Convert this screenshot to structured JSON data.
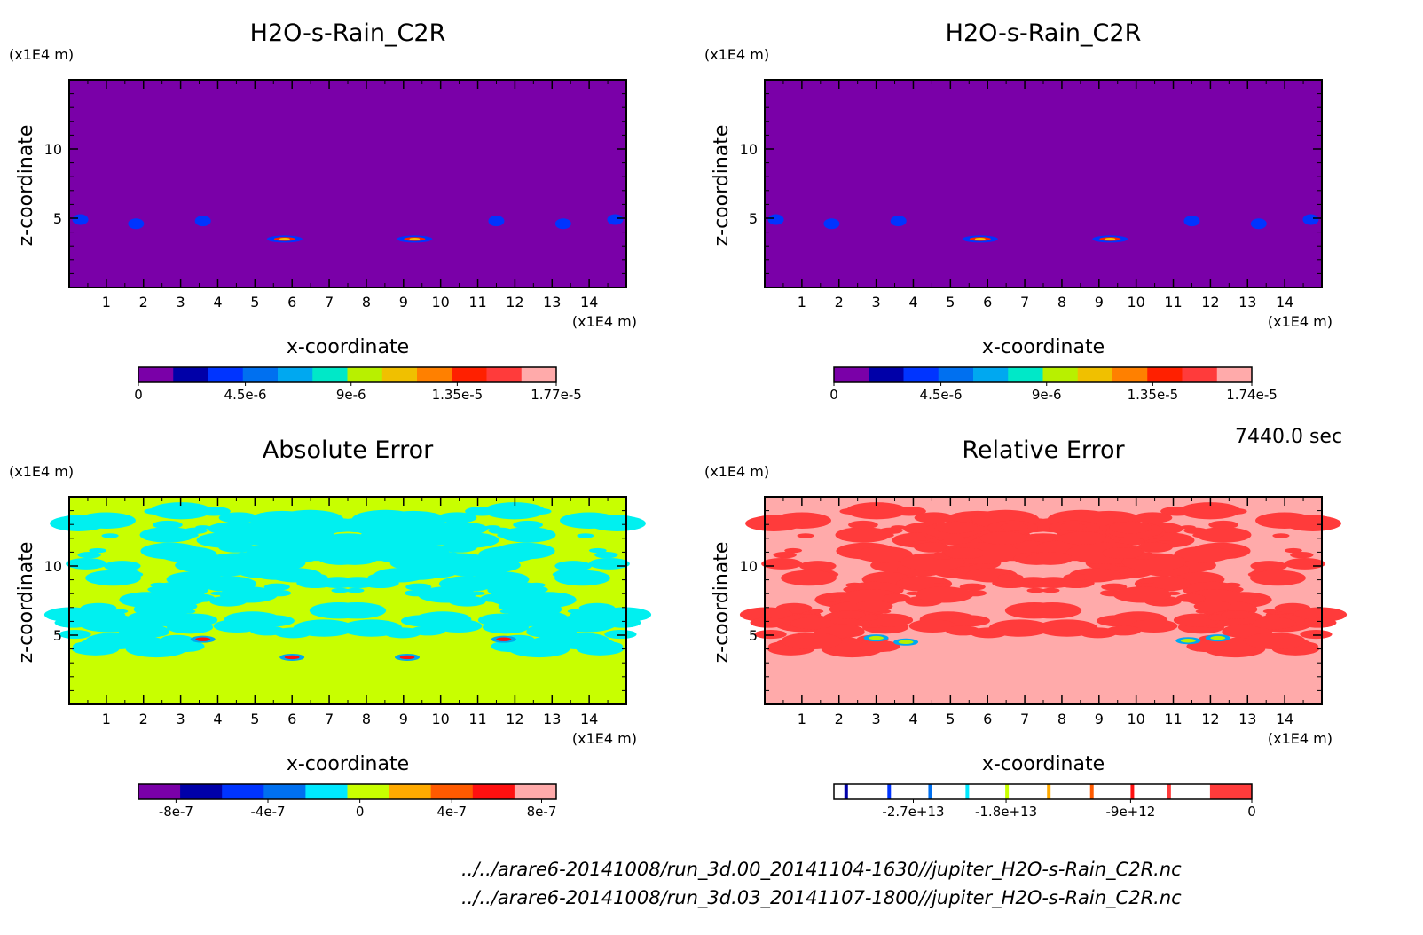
{
  "chart_data": [
    {
      "type": "heatmap",
      "title": "H2O-s-Rain_C2R",
      "xlabel": "x-coordinate",
      "ylabel": "z-coordinate",
      "x_unit": "(x1E4 m)",
      "y_unit": "(x1E4 m)",
      "xlim": [
        0,
        15
      ],
      "ylim": [
        0,
        15
      ],
      "x_ticks": [
        1,
        2,
        3,
        4,
        5,
        6,
        7,
        8,
        9,
        10,
        11,
        12,
        13,
        14
      ],
      "y_ticks": [
        5,
        10
      ],
      "background_level": 0,
      "colorbar": {
        "colors": [
          "#7a00a8",
          "#0000a8",
          "#0034ff",
          "#0070f0",
          "#00a8f0",
          "#00e8c8",
          "#b8f000",
          "#f0c000",
          "#ff8000",
          "#ff2000",
          "#ff3b3b",
          "#ffaaaa"
        ],
        "labels": [
          "0",
          "4.5e-6",
          "9e-6",
          "1.35e-5",
          "1.77e-5"
        ],
        "min": 0,
        "max": 1.77e-05
      },
      "features": [
        {
          "x": 0.3,
          "z": 4.9,
          "value": 5e-06,
          "color": "#0034ff"
        },
        {
          "x": 14.7,
          "z": 4.9,
          "value": 5e-06,
          "color": "#0034ff"
        },
        {
          "x": 1.8,
          "z": 4.6,
          "value": 2e-06,
          "color": "#0034ff"
        },
        {
          "x": 3.6,
          "z": 4.8,
          "value": 2e-06,
          "color": "#0034ff"
        },
        {
          "x": 11.5,
          "z": 4.8,
          "value": 2e-06,
          "color": "#0034ff"
        },
        {
          "x": 13.3,
          "z": 4.6,
          "value": 2e-06,
          "color": "#0034ff"
        },
        {
          "x": 5.8,
          "z": 3.5,
          "value": 1.77e-05,
          "color": "#ff2000"
        },
        {
          "x": 9.3,
          "z": 3.5,
          "value": 1.77e-05,
          "color": "#ff2000"
        }
      ]
    },
    {
      "type": "heatmap",
      "title": "H2O-s-Rain_C2R",
      "xlabel": "x-coordinate",
      "ylabel": "z-coordinate",
      "x_unit": "(x1E4 m)",
      "y_unit": "(x1E4 m)",
      "xlim": [
        0,
        15
      ],
      "ylim": [
        0,
        15
      ],
      "x_ticks": [
        1,
        2,
        3,
        4,
        5,
        6,
        7,
        8,
        9,
        10,
        11,
        12,
        13,
        14
      ],
      "y_ticks": [
        5,
        10
      ],
      "background_level": 0,
      "colorbar": {
        "colors": [
          "#7a00a8",
          "#0000a8",
          "#0034ff",
          "#0070f0",
          "#00a8f0",
          "#00e8c8",
          "#b8f000",
          "#f0c000",
          "#ff8000",
          "#ff2000",
          "#ff3b3b",
          "#ffaaaa"
        ],
        "labels": [
          "0",
          "4.5e-6",
          "9e-6",
          "1.35e-5",
          "1.74e-5"
        ],
        "min": 0,
        "max": 1.74e-05
      },
      "features": [
        {
          "x": 0.3,
          "z": 4.9,
          "value": 5e-06,
          "color": "#0034ff"
        },
        {
          "x": 14.7,
          "z": 4.9,
          "value": 5e-06,
          "color": "#0034ff"
        },
        {
          "x": 1.8,
          "z": 4.6,
          "value": 2e-06,
          "color": "#0034ff"
        },
        {
          "x": 3.6,
          "z": 4.8,
          "value": 2e-06,
          "color": "#0034ff"
        },
        {
          "x": 11.5,
          "z": 4.8,
          "value": 2e-06,
          "color": "#0034ff"
        },
        {
          "x": 13.3,
          "z": 4.6,
          "value": 2e-06,
          "color": "#0034ff"
        },
        {
          "x": 5.8,
          "z": 3.5,
          "value": 1.74e-05,
          "color": "#ff2000"
        },
        {
          "x": 9.3,
          "z": 3.5,
          "value": 1.74e-05,
          "color": "#ff2000"
        }
      ]
    },
    {
      "type": "heatmap",
      "title": "Absolute Error",
      "xlabel": "x-coordinate",
      "ylabel": "z-coordinate",
      "x_unit": "(x1E4 m)",
      "y_unit": "(x1E4 m)",
      "xlim": [
        0,
        15
      ],
      "ylim": [
        0,
        15
      ],
      "x_ticks": [
        1,
        2,
        3,
        4,
        5,
        6,
        7,
        8,
        9,
        10,
        11,
        12,
        13,
        14
      ],
      "y_ticks": [
        5,
        10
      ],
      "background_color": "#c8ff00",
      "pattern_color": "#00f0f0",
      "colorbar": {
        "colors": [
          "#7a00a8",
          "#0000a8",
          "#0034ff",
          "#0070f0",
          "#00e8ff",
          "#c8ff00",
          "#ffaa00",
          "#ff5a00",
          "#ff1010",
          "#ffaaaa"
        ],
        "labels": [
          "-8e-7",
          "-4e-7",
          "0",
          "4e-7",
          "8e-7"
        ],
        "min": -1e-06,
        "max": 1e-06
      },
      "features": [
        {
          "x": 3.6,
          "z": 4.7,
          "value": 8e-07,
          "color": "#ff1010"
        },
        {
          "x": 11.7,
          "z": 4.7,
          "value": 8e-07,
          "color": "#ff1010"
        },
        {
          "x": 6.0,
          "z": 3.4,
          "value": 8e-07,
          "color": "#ff1010"
        },
        {
          "x": 9.1,
          "z": 3.4,
          "value": 8e-07,
          "color": "#ff1010"
        }
      ]
    },
    {
      "type": "heatmap",
      "title": "Relative Error",
      "xlabel": "x-coordinate",
      "ylabel": "z-coordinate",
      "x_unit": "(x1E4 m)",
      "y_unit": "(x1E4 m)",
      "xlim": [
        0,
        15
      ],
      "ylim": [
        0,
        15
      ],
      "x_ticks": [
        1,
        2,
        3,
        4,
        5,
        6,
        7,
        8,
        9,
        10,
        11,
        12,
        13,
        14
      ],
      "y_ticks": [
        5,
        10
      ],
      "background_color": "#ffaaaa",
      "pattern_color": "#ff3b3b",
      "colorbar": {
        "colors": [
          "#7a00a8",
          "#0000a8",
          "#0034ff",
          "#0070f0",
          "#00e8ff",
          "#c8ff00",
          "#ffaa00",
          "#ff5a00",
          "#ff1010",
          "#ff3b3b"
        ],
        "labels": [
          "-2.7e+13",
          "-1.8e+13",
          "-9e+12",
          "0"
        ],
        "min": -33000000000000.0,
        "max": 0
      },
      "features": [
        {
          "x": 3.0,
          "z": 4.8,
          "value": -1000000000000.0,
          "color": "#b8f000"
        },
        {
          "x": 3.8,
          "z": 4.5,
          "value": -1000000000000.0,
          "color": "#b8f000"
        },
        {
          "x": 11.4,
          "z": 4.6,
          "value": -1000000000000.0,
          "color": "#b8f000"
        },
        {
          "x": 12.2,
          "z": 4.8,
          "value": -1000000000000.0,
          "color": "#b8f000"
        }
      ]
    }
  ],
  "time_label": "7440.0 sec",
  "footer": {
    "file1": "../../arare6-20141008/run_3d.00_20141104-1630//jupiter_H2O-s-Rain_C2R.nc",
    "file2": "../../arare6-20141008/run_3d.03_20141107-1800//jupiter_H2O-s-Rain_C2R.nc"
  }
}
